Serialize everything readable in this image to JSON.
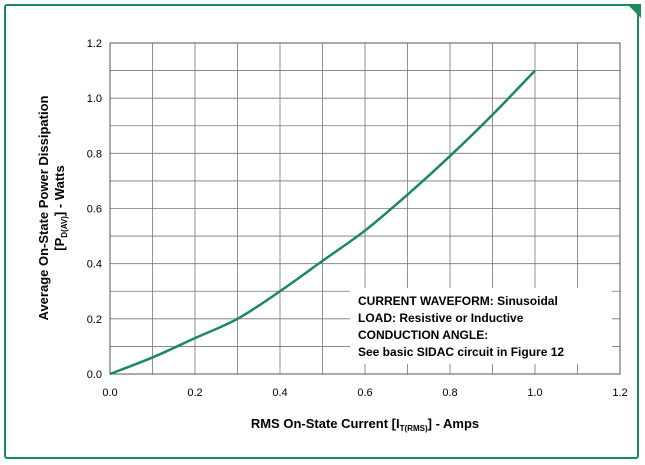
{
  "chart_data": {
    "type": "line",
    "x": [
      0.0,
      0.1,
      0.2,
      0.3,
      0.4,
      0.5,
      0.6,
      0.7,
      0.8,
      0.9,
      1.0
    ],
    "series": [
      {
        "values": [
          0.0,
          0.06,
          0.13,
          0.2,
          0.3,
          0.41,
          0.52,
          0.65,
          0.79,
          0.94,
          1.1
        ]
      }
    ],
    "xlim": [
      0,
      1.2
    ],
    "ylim": [
      0,
      1.2
    ],
    "xticks": [
      "0.0",
      "0.2",
      "0.4",
      "0.6",
      "0.8",
      "1.0",
      "1.2"
    ],
    "yticks": [
      "0.0",
      "0.2",
      "0.4",
      "0.6",
      "0.8",
      "1.0",
      "1.2"
    ],
    "xlabel": {
      "pre": "RMS On-State Current [I",
      "sub": "T(RMS)",
      "post": "] - Amps"
    },
    "ylabel": {
      "line1": "Average On-State Power Dissipation",
      "pre": "[P",
      "sub": "D(AV)",
      "post": "] - Watts"
    },
    "grid": true,
    "line_color": "#1a8a5a",
    "annotation": [
      "CURRENT WAVEFORM: Sinusoidal",
      "LOAD: Resistive or Inductive",
      "CONDUCTION ANGLE:",
      "See basic SIDAC circuit in Figure 12"
    ]
  }
}
